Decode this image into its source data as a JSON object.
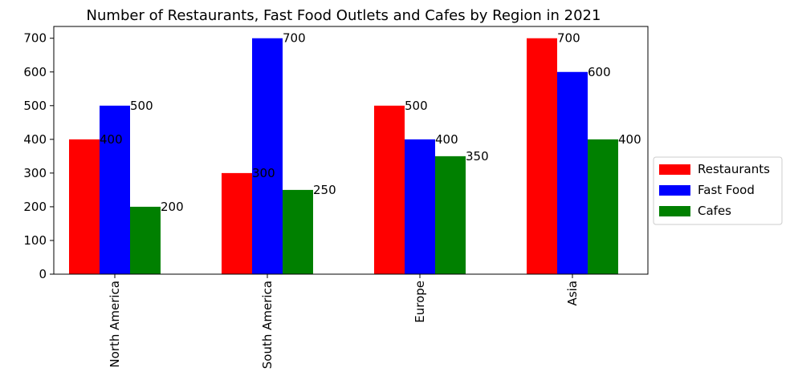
{
  "chart_data": {
    "type": "bar",
    "title": "Number of Restaurants, Fast Food Outlets and Cafes by Region in 2021",
    "xlabel": "",
    "ylabel": "",
    "categories": [
      "North America",
      "South America",
      "Europe",
      "Asia"
    ],
    "series": [
      {
        "name": "Restaurants",
        "color": "#ff0000",
        "values": [
          400,
          300,
          500,
          700
        ]
      },
      {
        "name": "Fast Food",
        "color": "#0000ff",
        "values": [
          500,
          700,
          400,
          600
        ]
      },
      {
        "name": "Cafes",
        "color": "#008000",
        "values": [
          200,
          250,
          350,
          400
        ]
      }
    ],
    "ylim": [
      0,
      735
    ],
    "yticks": [
      "0",
      "100",
      "200",
      "300",
      "400",
      "500",
      "600",
      "700"
    ],
    "grid": false,
    "legend_position": "right"
  }
}
